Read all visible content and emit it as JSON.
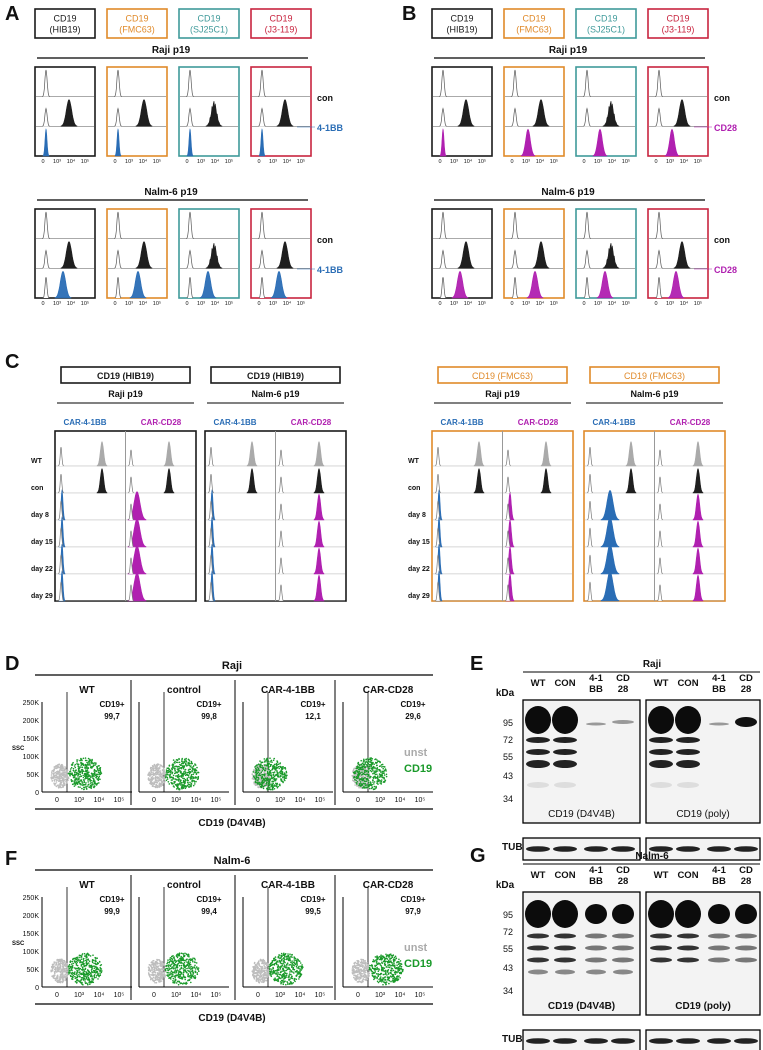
{
  "panels": {
    "A": "A",
    "B": "B",
    "C": "C",
    "D": "D",
    "E": "E",
    "F": "F",
    "G": "G"
  },
  "colors": {
    "black": "#1a1a1a",
    "orange": "#e08a2a",
    "teal": "#3f9a9a",
    "crimson": "#c8243f",
    "blue": "#2a6db5",
    "magenta": "#b020b0",
    "green": "#1a9a2a",
    "gray": "#bbbbbb"
  },
  "antibodies": [
    {
      "name": "CD19",
      "clone": "(HIB19)",
      "color": "black"
    },
    {
      "name": "CD19",
      "clone": "(FMC63)",
      "color": "orange"
    },
    {
      "name": "CD19",
      "clone": "(SJ25C1)",
      "color": "teal"
    },
    {
      "name": "CD19",
      "clone": "(J3-119)",
      "color": "crimson"
    }
  ],
  "panelA": {
    "top_group": "Raji p19",
    "bottom_group": "Nalm-6 p19",
    "row_con": "con",
    "row_car": "4-1BB"
  },
  "panelB": {
    "top_group": "Raji p19",
    "bottom_group": "Nalm-6 p19",
    "row_con": "con",
    "row_car": "CD28"
  },
  "hist_ticks": [
    "0",
    "10³",
    "10⁴",
    "10⁵"
  ],
  "panelC": {
    "blocks": [
      {
        "header": "CD19 (HIB19)",
        "group": "Raji p19",
        "color": "black"
      },
      {
        "header": "CD19 (HIB19)",
        "group": "Nalm-6 p19",
        "color": "black"
      },
      {
        "header": "CD19 (FMC63)",
        "group": "Raji p19",
        "color": "orange"
      },
      {
        "header": "CD19 (FMC63)",
        "group": "Nalm-6 p19",
        "color": "orange"
      }
    ],
    "sub_left": "CAR-4-1BB",
    "sub_right": "CAR-CD28",
    "rows": [
      "WT",
      "con",
      "day 8",
      "day 15",
      "day 22",
      "day 29"
    ]
  },
  "panelD": {
    "title": "Raji",
    "columns": [
      "WT",
      "control",
      "CAR-4-1BB",
      "CAR-CD28"
    ],
    "gate_label": "CD19+",
    "percent": [
      "99,7",
      "99,8",
      "12,1",
      "29,6"
    ],
    "y_ticks": [
      "250K",
      "200K",
      "150K",
      "100K",
      "50K",
      "0"
    ],
    "y_label": "SSC",
    "x_ticks": [
      "0",
      "10³",
      "10⁴",
      "10⁵"
    ],
    "x_label": "CD19 (D4V4B)",
    "legend_unst": "unst",
    "legend_cd19": "CD19"
  },
  "panelF": {
    "title": "Nalm-6",
    "columns": [
      "WT",
      "control",
      "CAR-4-1BB",
      "CAR-CD28"
    ],
    "gate_label": "CD19+",
    "percent": [
      "99,9",
      "99,4",
      "99,5",
      "97,9"
    ],
    "y_ticks": [
      "250K",
      "200K",
      "150K",
      "100K",
      "50K",
      "0"
    ],
    "y_label": "SSC",
    "x_ticks": [
      "0",
      "10³",
      "10⁴",
      "10⁵"
    ],
    "x_label": "CD19 (D4V4B)",
    "legend_unst": "unst",
    "legend_cd19": "CD19"
  },
  "panelE": {
    "title": "Raji",
    "kda": "kDa",
    "lanes": [
      "WT",
      "CON",
      "4-1\nBB",
      "CD\n28"
    ],
    "markers": [
      "95",
      "72",
      "55",
      "43",
      "34"
    ],
    "blot_left": "CD19 (D4V4B)",
    "blot_right": "CD19 (poly)",
    "loading": "TUB"
  },
  "panelG": {
    "title": "Nalm-6",
    "kda": "kDa",
    "lanes": [
      "WT",
      "CON",
      "4-1\nBB",
      "CD\n28"
    ],
    "markers": [
      "95",
      "72",
      "55",
      "43",
      "34"
    ],
    "blot_left": "CD19 (D4V4B)",
    "blot_right": "CD19 (poly)",
    "loading": "TUB"
  }
}
